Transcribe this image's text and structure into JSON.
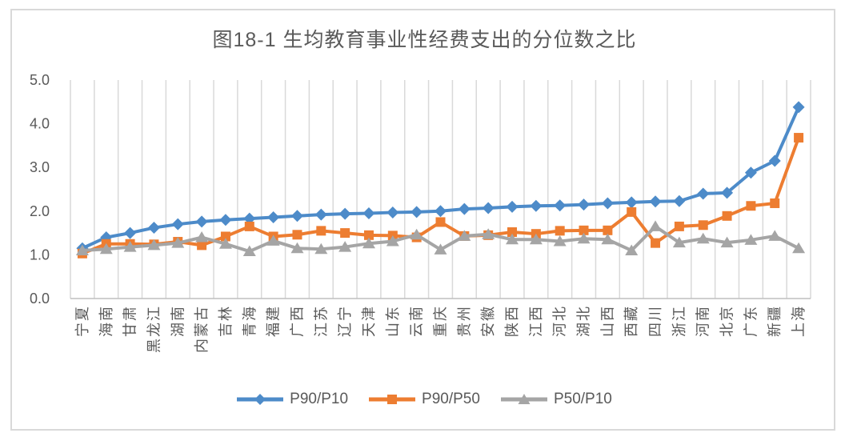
{
  "figure": {
    "border_color": "#d9d9d9",
    "background": "#ffffff"
  },
  "chart_data": {
    "type": "line",
    "title": "图18-1 生均教育事业性经费支出的分位数之比",
    "xlabel": "",
    "ylabel": "",
    "ylim": [
      0,
      5
    ],
    "y_ticks": [
      "0.0",
      "1.0",
      "2.0",
      "3.0",
      "4.0",
      "5.0"
    ],
    "grid": "vertical-only",
    "legend_position": "bottom",
    "categories": [
      "宁夏",
      "海南",
      "甘肃",
      "黑龙江",
      "湖南",
      "内蒙古",
      "吉林",
      "青海",
      "福建",
      "广西",
      "江苏",
      "辽宁",
      "天津",
      "山东",
      "云南",
      "重庆",
      "贵州",
      "安徽",
      "陕西",
      "江西",
      "河北",
      "湖北",
      "山西",
      "西藏",
      "四川",
      "浙江",
      "河南",
      "北京",
      "广东",
      "新疆",
      "上海"
    ],
    "series": [
      {
        "name": "P90/P10",
        "marker": "diamond",
        "color": "#4d8bc9",
        "values": [
          1.15,
          1.4,
          1.5,
          1.62,
          1.7,
          1.76,
          1.8,
          1.83,
          1.86,
          1.89,
          1.92,
          1.94,
          1.95,
          1.97,
          1.98,
          2.0,
          2.05,
          2.07,
          2.1,
          2.12,
          2.13,
          2.15,
          2.18,
          2.2,
          2.22,
          2.23,
          2.4,
          2.42,
          2.88,
          3.15,
          4.38
        ]
      },
      {
        "name": "P90/P50",
        "marker": "square",
        "color": "#ed7d31",
        "values": [
          1.03,
          1.25,
          1.25,
          1.24,
          1.3,
          1.22,
          1.42,
          1.65,
          1.42,
          1.46,
          1.55,
          1.5,
          1.45,
          1.44,
          1.4,
          1.75,
          1.43,
          1.45,
          1.52,
          1.48,
          1.55,
          1.56,
          1.56,
          1.98,
          1.27,
          1.65,
          1.68,
          1.89,
          2.12,
          2.18,
          3.68
        ]
      },
      {
        "name": "P50/P10",
        "marker": "triangle",
        "color": "#a5a5a5",
        "values": [
          1.1,
          1.13,
          1.18,
          1.22,
          1.27,
          1.4,
          1.25,
          1.08,
          1.32,
          1.15,
          1.13,
          1.18,
          1.26,
          1.31,
          1.46,
          1.12,
          1.43,
          1.47,
          1.35,
          1.35,
          1.31,
          1.37,
          1.35,
          1.1,
          1.65,
          1.28,
          1.37,
          1.28,
          1.34,
          1.43,
          1.15
        ]
      }
    ],
    "style": {
      "grid_color": "#d9d9d9",
      "axis_color": "#bfbfbf",
      "text_color": "#595959"
    }
  }
}
